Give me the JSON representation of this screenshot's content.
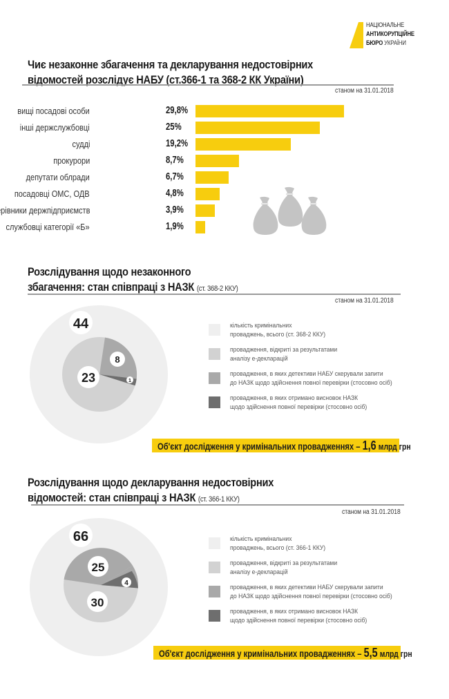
{
  "logo": {
    "line1": "НАЦІОНАЛЬНЕ",
    "line2": "АНТИКОРУПЦІЙНЕ",
    "line3_bold": "БЮРО",
    "line3_light": "УКРАЇНИ",
    "accent": "#f7cd0e"
  },
  "section1": {
    "title_line1": "Чиє незаконне збагачення та декларування недостовірних",
    "title_line2": "відомостей розслідує НАБУ (ст.366-1 та 368-2 КК України)",
    "as_of": "станом на 31.01.2018",
    "bars": [
      {
        "label": "вищі посадові особи",
        "value": "29,8%",
        "pct": 29.8
      },
      {
        "label": "інші держслужбовці",
        "value": "25%",
        "pct": 25
      },
      {
        "label": "судді",
        "value": "19,2%",
        "pct": 19.2
      },
      {
        "label": "прокурори",
        "value": "8,7%",
        "pct": 8.7
      },
      {
        "label": "депутати облради",
        "value": "6,7%",
        "pct": 6.7
      },
      {
        "label": "посадовці ОМС, ОДВ",
        "value": "4,8%",
        "pct": 4.8
      },
      {
        "label": "керівники держпідприємств",
        "value": "3,9%",
        "pct": 3.9
      },
      {
        "label": "службовці категорії «Б»",
        "value": "1,9%",
        "pct": 1.9
      }
    ]
  },
  "section2": {
    "title_line1": "Розслідування щодо незаконного",
    "title_line2": "збагачення: стан співпраці з НАЗК",
    "title_note": "(ст. 368-2 ККУ)",
    "as_of": "станом на 31.01.2018",
    "total": "44",
    "slices": {
      "e_declarations": "23",
      "requests": "8",
      "conclusions": "1"
    },
    "legend": [
      {
        "line1": "кількість кримінальних",
        "line2": "проваджень, всього (ст. 368-2 ККУ)",
        "color": "#efefef"
      },
      {
        "line1": "провадження, відкриті за результатами",
        "line2": "аналізу е-декларацій",
        "color": "#d2d2d2"
      },
      {
        "line1": "провадження, в яких детективи НАБУ скерували запити",
        "line2": "до НАЗК щодо здійснення повної перевірки (стосовно осіб)",
        "color": "#a9a9a9"
      },
      {
        "line1": "провадження, в яких отримано висновок НАЗК",
        "line2": "щодо здійснення повної перевірки (стосовно осіб)",
        "color": "#6e6e6e"
      }
    ],
    "callout": {
      "text": "Об'єкт дослідження у кримінальних провадженнях",
      "dash": "–",
      "amount": "1,6",
      "unit": "млрд грн"
    }
  },
  "section3": {
    "title_line1": "Розслідування щодо декларування недостовірних",
    "title_line2": "відомостей: стан співпраці з НАЗК",
    "title_note": "(ст. 366-1 ККУ)",
    "as_of": "станом на 31.01.2018",
    "total": "66",
    "slices": {
      "e_declarations": "30",
      "requests": "25",
      "conclusions": "4"
    },
    "legend": [
      {
        "line1": "кількість кримінальних",
        "line2": "проваджень, всього (ст. 366-1 ККУ)",
        "color": "#efefef"
      },
      {
        "line1": "провадження, відкриті за результатами",
        "line2": "аналізу е-декларацій",
        "color": "#d2d2d2"
      },
      {
        "line1": "провадження, в яких детективи НАБУ скерували запити",
        "line2": "до НАЗК щодо здійснення повної перевірки (стосовно осіб)",
        "color": "#a9a9a9"
      },
      {
        "line1": "провадження, в яких отримано висновок НАЗК",
        "line2": "щодо здійснення повної перевірки (стосовно осіб)",
        "color": "#6e6e6e"
      }
    ],
    "callout": {
      "text": "Об'єкт дослідження у кримінальних провадженнях",
      "dash": "–",
      "amount": "5,5",
      "unit": "млрд грн"
    }
  },
  "chart_data": [
    {
      "type": "bar",
      "orientation": "horizontal",
      "title": "Чиє незаконне збагачення та декларування недостовірних відомостей розслідує НАБУ (ст.366-1 та 368-2 КК України)",
      "subtitle": "станом на 31.01.2018",
      "categories": [
        "вищі посадові особи",
        "інші держслужбовці",
        "судді",
        "прокурори",
        "депутати облради",
        "посадовці ОМС, ОДВ",
        "керівники держпідприємств",
        "службовці категорії «Б»"
      ],
      "values": [
        29.8,
        25,
        19.2,
        8.7,
        6.7,
        4.8,
        3.9,
        1.9
      ],
      "unit": "%",
      "xlabel": "",
      "ylabel": "",
      "grid": false
    },
    {
      "type": "pie",
      "title": "Розслідування щодо незаконного збагачення: стан співпраці з НАЗК (ст. 368-2 ККУ)",
      "subtitle": "станом на 31.01.2018",
      "total": 44,
      "categories": [
        "провадження, відкриті за результатами аналізу е-декларацій",
        "провадження, в яких детективи НАБУ скерували запити до НАЗК щодо здійснення повної перевірки (стосовно осіб)",
        "провадження, в яких отримано висновок НАЗК щодо здійснення повної перевірки (стосовно осіб)"
      ],
      "values": [
        23,
        8,
        1
      ],
      "legend_position": "right",
      "annotation": "Об'єкт дослідження у кримінальних провадженнях – 1,6 млрд грн"
    },
    {
      "type": "pie",
      "title": "Розслідування щодо декларування недостовірних відомостей: стан співпраці з НАЗК (ст. 366-1 ККУ)",
      "subtitle": "станом на 31.01.2018",
      "total": 66,
      "categories": [
        "провадження, відкриті за результатами аналізу е-декларацій",
        "провадження, в яких детективи НАБУ скерували запити до НАЗК щодо здійснення повної перевірки (стосовно осіб)",
        "провадження, в яких отримано висновок НАЗК щодо здійснення повної перевірки (стосовно осіб)"
      ],
      "values": [
        30,
        25,
        4
      ],
      "legend_position": "right",
      "annotation": "Об'єкт дослідження у кримінальних провадженнях – 5,5 млрд грн"
    }
  ]
}
